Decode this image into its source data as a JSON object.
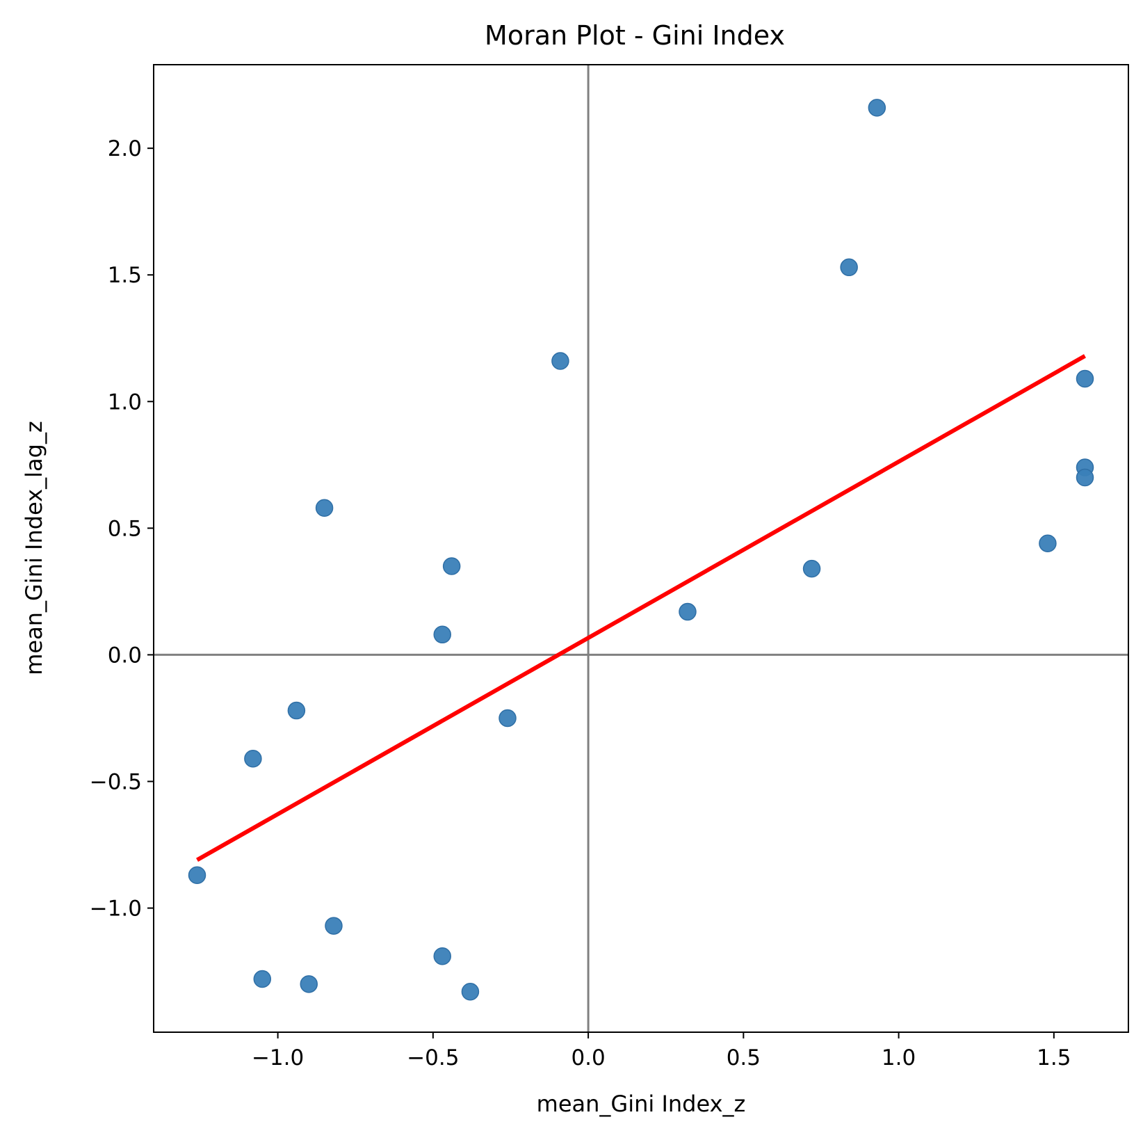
{
  "chart_data": {
    "type": "scatter",
    "title": "Moran Plot - Gini Index",
    "xlabel": "mean_Gini Index_z",
    "ylabel": "mean_Gini Index_lag_z",
    "xlim": [
      -1.4,
      1.74
    ],
    "ylim": [
      -1.49,
      2.33
    ],
    "xticks": [
      -1.0,
      -0.5,
      0.0,
      0.5,
      1.0,
      1.5
    ],
    "xtick_labels": [
      "−1.0",
      "−0.5",
      "0.0",
      "0.5",
      "1.0",
      "1.5"
    ],
    "yticks": [
      -1.0,
      -0.5,
      0.0,
      0.5,
      1.0,
      1.5,
      2.0
    ],
    "ytick_labels": [
      "−1.0",
      "−0.5",
      "0.0",
      "0.5",
      "1.0",
      "1.5",
      "2.0"
    ],
    "grid": false,
    "reference_lines": {
      "x": 0,
      "y": 0,
      "color": "#808080"
    },
    "points": [
      {
        "x": 0.93,
        "y": 2.16
      },
      {
        "x": 0.84,
        "y": 1.53
      },
      {
        "x": -0.09,
        "y": 1.16
      },
      {
        "x": 1.6,
        "y": 1.09
      },
      {
        "x": 1.6,
        "y": 0.74
      },
      {
        "x": 1.6,
        "y": 0.7
      },
      {
        "x": -0.85,
        "y": 0.58
      },
      {
        "x": 1.48,
        "y": 0.44
      },
      {
        "x": -0.44,
        "y": 0.35
      },
      {
        "x": 0.72,
        "y": 0.34
      },
      {
        "x": 0.32,
        "y": 0.17
      },
      {
        "x": -0.47,
        "y": 0.08
      },
      {
        "x": -0.94,
        "y": -0.22
      },
      {
        "x": -0.26,
        "y": -0.25
      },
      {
        "x": -1.08,
        "y": -0.41
      },
      {
        "x": -1.26,
        "y": -0.87
      },
      {
        "x": -0.82,
        "y": -1.07
      },
      {
        "x": -0.47,
        "y": -1.19
      },
      {
        "x": -1.05,
        "y": -1.28
      },
      {
        "x": -0.9,
        "y": -1.3
      },
      {
        "x": -0.38,
        "y": -1.33
      }
    ],
    "point_color": "#3a7fb8",
    "fit_line": {
      "x": [
        -1.26,
        1.6
      ],
      "y": [
        -0.81,
        1.18
      ],
      "color": "#ff0000"
    }
  }
}
